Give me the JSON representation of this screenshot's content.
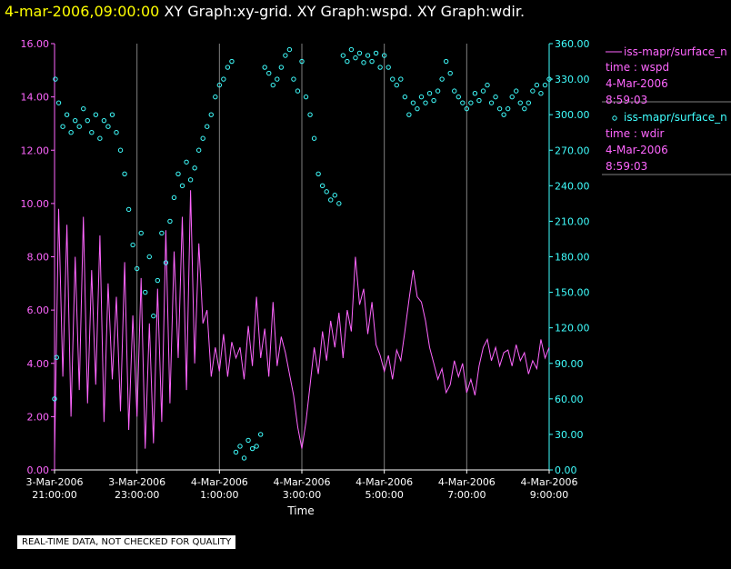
{
  "header": {
    "time": "4-mar-2006,09:00:00",
    "graphs": "XY Graph:xy-grid.  XY Graph:wspd.  XY Graph:wdir."
  },
  "legend": {
    "wspd": {
      "name": "iss-mapr/surface_n",
      "line1": "time : wspd",
      "line2": "4-Mar-2006",
      "line3": "8:59:03"
    },
    "wdir": {
      "name": "iss-mapr/surface_n",
      "line1": "time : wdir",
      "line2": "4-Mar-2006",
      "line3": "8:59:03"
    }
  },
  "footer": {
    "quality_note": "REAL-TIME DATA, NOT CHECKED FOR QUALITY"
  },
  "colors": {
    "wspd": "#ff66ff",
    "wdir": "#40ffff",
    "grid": "#808080",
    "axis": "#ffffff"
  },
  "chart_data": {
    "type": "line+scatter",
    "xlabel": "Time",
    "x_ticks": [
      {
        "t": 0,
        "l1": "3-Mar-2006",
        "l2": "21:00:00"
      },
      {
        "t": 2,
        "l1": "3-Mar-2006",
        "l2": "23:00:00"
      },
      {
        "t": 4,
        "l1": "4-Mar-2006",
        "l2": "1:00:00"
      },
      {
        "t": 6,
        "l1": "4-Mar-2006",
        "l2": "3:00:00"
      },
      {
        "t": 8,
        "l1": "4-Mar-2006",
        "l2": "5:00:00"
      },
      {
        "t": 10,
        "l1": "4-Mar-2006",
        "l2": "7:00:00"
      },
      {
        "t": 12,
        "l1": "4-Mar-2006",
        "l2": "9:00:00"
      }
    ],
    "xlim": [
      0,
      12
    ],
    "left_axis": {
      "lim": [
        0,
        16
      ],
      "ticks": [
        "0.00",
        "2.00",
        "4.00",
        "6.00",
        "8.00",
        "10.00",
        "12.00",
        "14.00",
        "16.00"
      ]
    },
    "right_axis": {
      "lim": [
        0,
        360
      ],
      "ticks": [
        "0.00",
        "30.00",
        "60.00",
        "90.00",
        "120.00",
        "150.00",
        "180.00",
        "210.00",
        "240.00",
        "270.00",
        "300.00",
        "330.00",
        "360.00"
      ]
    },
    "vertical_grid": [
      0,
      2,
      4,
      6,
      8,
      10,
      12
    ],
    "series": [
      {
        "name": "wspd",
        "axis": "left",
        "style": "line",
        "points": [
          [
            0.0,
            0.5
          ],
          [
            0.1,
            9.8
          ],
          [
            0.2,
            3.5
          ],
          [
            0.3,
            9.2
          ],
          [
            0.4,
            2.0
          ],
          [
            0.5,
            8.0
          ],
          [
            0.6,
            3.0
          ],
          [
            0.7,
            9.5
          ],
          [
            0.8,
            2.5
          ],
          [
            0.9,
            7.5
          ],
          [
            1.0,
            3.2
          ],
          [
            1.1,
            8.8
          ],
          [
            1.2,
            1.8
          ],
          [
            1.3,
            7.0
          ],
          [
            1.4,
            3.4
          ],
          [
            1.5,
            6.5
          ],
          [
            1.6,
            2.2
          ],
          [
            1.7,
            7.8
          ],
          [
            1.8,
            1.5
          ],
          [
            1.9,
            5.8
          ],
          [
            2.0,
            2.0
          ],
          [
            2.1,
            7.2
          ],
          [
            2.2,
            0.8
          ],
          [
            2.3,
            5.5
          ],
          [
            2.4,
            1.0
          ],
          [
            2.5,
            6.8
          ],
          [
            2.6,
            1.8
          ],
          [
            2.7,
            9.0
          ],
          [
            2.8,
            2.5
          ],
          [
            2.9,
            8.2
          ],
          [
            3.0,
            4.2
          ],
          [
            3.1,
            9.5
          ],
          [
            3.2,
            3.0
          ],
          [
            3.3,
            10.5
          ],
          [
            3.4,
            4.0
          ],
          [
            3.5,
            8.5
          ],
          [
            3.6,
            5.5
          ],
          [
            3.7,
            6.0
          ],
          [
            3.8,
            3.5
          ],
          [
            3.9,
            4.6
          ],
          [
            4.0,
            3.7
          ],
          [
            4.1,
            5.1
          ],
          [
            4.2,
            3.5
          ],
          [
            4.3,
            4.8
          ],
          [
            4.4,
            4.2
          ],
          [
            4.5,
            4.6
          ],
          [
            4.6,
            3.4
          ],
          [
            4.7,
            5.4
          ],
          [
            4.8,
            3.9
          ],
          [
            4.9,
            6.5
          ],
          [
            5.0,
            4.2
          ],
          [
            5.1,
            5.3
          ],
          [
            5.2,
            3.5
          ],
          [
            5.3,
            6.3
          ],
          [
            5.4,
            3.9
          ],
          [
            5.5,
            5.0
          ],
          [
            5.6,
            4.4
          ],
          [
            5.7,
            3.6
          ],
          [
            5.8,
            2.8
          ],
          [
            5.9,
            1.6
          ],
          [
            6.0,
            0.8
          ],
          [
            6.1,
            1.8
          ],
          [
            6.2,
            3.2
          ],
          [
            6.3,
            4.6
          ],
          [
            6.4,
            3.6
          ],
          [
            6.5,
            5.2
          ],
          [
            6.6,
            4.1
          ],
          [
            6.7,
            5.6
          ],
          [
            6.8,
            4.6
          ],
          [
            6.9,
            5.9
          ],
          [
            7.0,
            4.2
          ],
          [
            7.1,
            6.0
          ],
          [
            7.2,
            5.2
          ],
          [
            7.3,
            8.0
          ],
          [
            7.4,
            6.2
          ],
          [
            7.5,
            6.8
          ],
          [
            7.6,
            5.1
          ],
          [
            7.7,
            6.3
          ],
          [
            7.8,
            4.7
          ],
          [
            7.9,
            4.3
          ],
          [
            8.0,
            3.7
          ],
          [
            8.1,
            4.3
          ],
          [
            8.2,
            3.4
          ],
          [
            8.3,
            4.5
          ],
          [
            8.4,
            4.1
          ],
          [
            8.5,
            5.2
          ],
          [
            8.6,
            6.4
          ],
          [
            8.7,
            7.5
          ],
          [
            8.8,
            6.5
          ],
          [
            8.9,
            6.3
          ],
          [
            9.0,
            5.6
          ],
          [
            9.1,
            4.6
          ],
          [
            9.2,
            4.0
          ],
          [
            9.3,
            3.4
          ],
          [
            9.4,
            3.8
          ],
          [
            9.5,
            2.9
          ],
          [
            9.6,
            3.2
          ],
          [
            9.7,
            4.1
          ],
          [
            9.8,
            3.5
          ],
          [
            9.9,
            4.0
          ],
          [
            10.0,
            2.9
          ],
          [
            10.1,
            3.4
          ],
          [
            10.2,
            2.8
          ],
          [
            10.3,
            3.9
          ],
          [
            10.4,
            4.6
          ],
          [
            10.5,
            4.9
          ],
          [
            10.6,
            4.1
          ],
          [
            10.7,
            4.6
          ],
          [
            10.8,
            3.9
          ],
          [
            10.9,
            4.4
          ],
          [
            11.0,
            4.5
          ],
          [
            11.1,
            3.9
          ],
          [
            11.2,
            4.7
          ],
          [
            11.3,
            4.1
          ],
          [
            11.4,
            4.4
          ],
          [
            11.5,
            3.6
          ],
          [
            11.6,
            4.1
          ],
          [
            11.7,
            3.8
          ],
          [
            11.8,
            4.9
          ],
          [
            11.9,
            4.2
          ],
          [
            12.0,
            4.6
          ]
        ]
      },
      {
        "name": "wdir",
        "axis": "right",
        "style": "scatter",
        "points": [
          [
            0.0,
            60
          ],
          [
            0.02,
            330
          ],
          [
            0.05,
            95
          ],
          [
            0.1,
            310
          ],
          [
            0.2,
            290
          ],
          [
            0.3,
            300
          ],
          [
            0.4,
            285
          ],
          [
            0.5,
            295
          ],
          [
            0.6,
            290
          ],
          [
            0.7,
            305
          ],
          [
            0.8,
            295
          ],
          [
            0.9,
            285
          ],
          [
            1.0,
            300
          ],
          [
            1.1,
            280
          ],
          [
            1.2,
            295
          ],
          [
            1.3,
            290
          ],
          [
            1.4,
            300
          ],
          [
            1.5,
            285
          ],
          [
            1.6,
            270
          ],
          [
            1.7,
            250
          ],
          [
            1.8,
            220
          ],
          [
            1.9,
            190
          ],
          [
            2.0,
            170
          ],
          [
            2.1,
            200
          ],
          [
            2.2,
            150
          ],
          [
            2.3,
            180
          ],
          [
            2.4,
            130
          ],
          [
            2.5,
            160
          ],
          [
            2.6,
            200
          ],
          [
            2.7,
            175
          ],
          [
            2.8,
            210
          ],
          [
            2.9,
            230
          ],
          [
            3.0,
            250
          ],
          [
            3.1,
            240
          ],
          [
            3.2,
            260
          ],
          [
            3.3,
            245
          ],
          [
            3.4,
            255
          ],
          [
            3.5,
            270
          ],
          [
            3.6,
            280
          ],
          [
            3.7,
            290
          ],
          [
            3.8,
            300
          ],
          [
            3.9,
            315
          ],
          [
            4.0,
            325
          ],
          [
            4.1,
            330
          ],
          [
            4.2,
            340
          ],
          [
            4.3,
            345
          ],
          [
            4.4,
            15
          ],
          [
            4.5,
            20
          ],
          [
            4.6,
            10
          ],
          [
            4.7,
            25
          ],
          [
            4.8,
            18
          ],
          [
            4.9,
            20
          ],
          [
            5.0,
            30
          ],
          [
            5.1,
            340
          ],
          [
            5.2,
            335
          ],
          [
            5.3,
            325
          ],
          [
            5.4,
            330
          ],
          [
            5.5,
            340
          ],
          [
            5.6,
            350
          ],
          [
            5.7,
            355
          ],
          [
            5.8,
            330
          ],
          [
            5.9,
            320
          ],
          [
            6.0,
            345
          ],
          [
            6.1,
            315
          ],
          [
            6.2,
            300
          ],
          [
            6.3,
            280
          ],
          [
            6.4,
            250
          ],
          [
            6.5,
            240
          ],
          [
            6.6,
            235
          ],
          [
            6.7,
            228
          ],
          [
            6.8,
            232
          ],
          [
            6.9,
            225
          ],
          [
            7.0,
            350
          ],
          [
            7.1,
            345
          ],
          [
            7.2,
            355
          ],
          [
            7.3,
            348
          ],
          [
            7.4,
            352
          ],
          [
            7.5,
            344
          ],
          [
            7.6,
            350
          ],
          [
            7.7,
            345
          ],
          [
            7.8,
            352
          ],
          [
            7.9,
            340
          ],
          [
            8.0,
            350
          ],
          [
            8.1,
            340
          ],
          [
            8.2,
            330
          ],
          [
            8.3,
            325
          ],
          [
            8.4,
            330
          ],
          [
            8.5,
            315
          ],
          [
            8.6,
            300
          ],
          [
            8.7,
            310
          ],
          [
            8.8,
            305
          ],
          [
            8.9,
            315
          ],
          [
            9.0,
            310
          ],
          [
            9.1,
            318
          ],
          [
            9.2,
            312
          ],
          [
            9.3,
            320
          ],
          [
            9.4,
            330
          ],
          [
            9.5,
            345
          ],
          [
            9.6,
            335
          ],
          [
            9.7,
            320
          ],
          [
            9.8,
            315
          ],
          [
            9.9,
            310
          ],
          [
            10.0,
            305
          ],
          [
            10.1,
            310
          ],
          [
            10.2,
            318
          ],
          [
            10.3,
            312
          ],
          [
            10.4,
            320
          ],
          [
            10.5,
            325
          ],
          [
            10.6,
            310
          ],
          [
            10.7,
            315
          ],
          [
            10.8,
            305
          ],
          [
            10.9,
            300
          ],
          [
            11.0,
            305
          ],
          [
            11.1,
            315
          ],
          [
            11.2,
            320
          ],
          [
            11.3,
            310
          ],
          [
            11.4,
            305
          ],
          [
            11.5,
            310
          ],
          [
            11.6,
            320
          ],
          [
            11.7,
            325
          ],
          [
            11.8,
            318
          ],
          [
            11.9,
            325
          ],
          [
            12.0,
            330
          ]
        ]
      }
    ]
  }
}
